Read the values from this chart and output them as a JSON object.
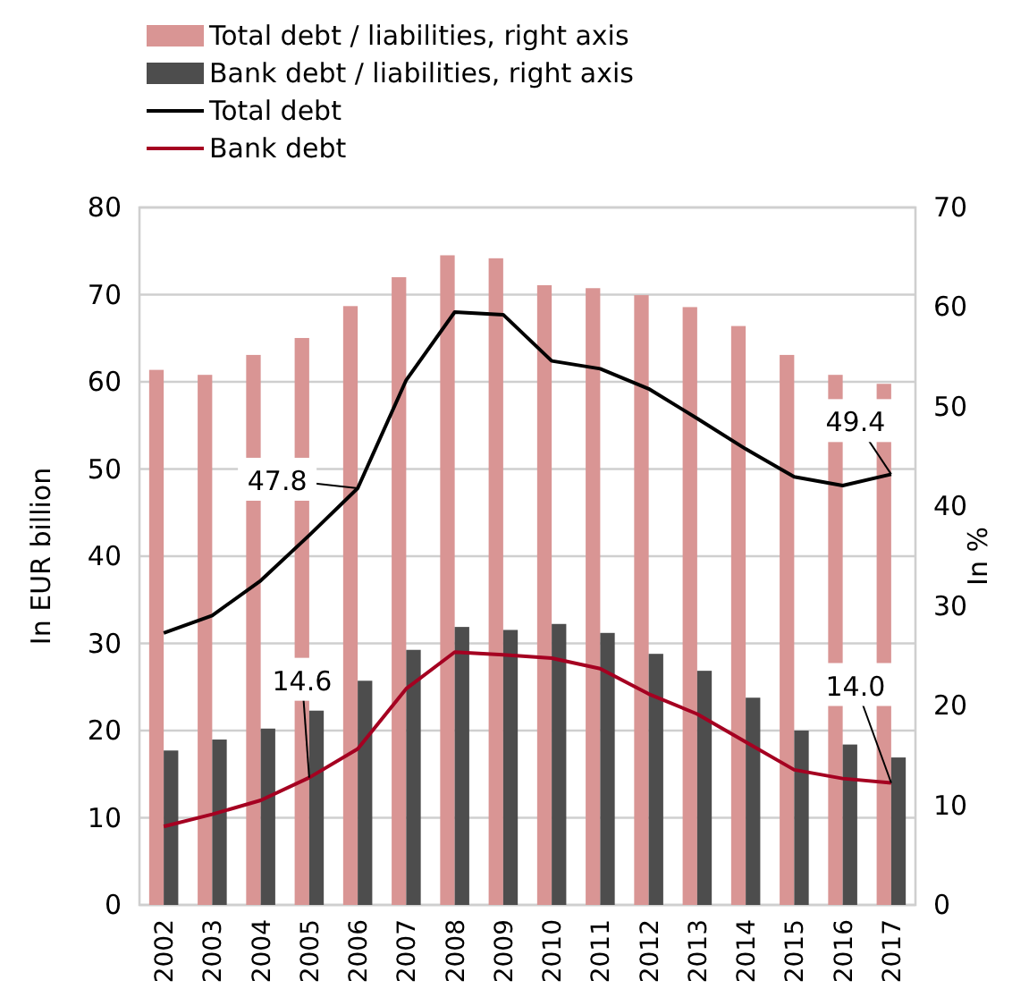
{
  "chart_data": {
    "type": "bar",
    "ylabel": "In EUR billion",
    "y2label": "In %",
    "categories": [
      "2002",
      "2003",
      "2004",
      "2005",
      "2006",
      "2007",
      "2008",
      "2009",
      "2010",
      "2011",
      "2012",
      "2013",
      "2014",
      "2015",
      "2016",
      "2017"
    ],
    "series": [
      {
        "name": "Total debt / liabilities, right axis",
        "axis": "y2",
        "color": "#d99594",
        "values": [
          53.7,
          53.2,
          55.2,
          56.9,
          60.1,
          63.0,
          65.2,
          64.9,
          62.2,
          61.9,
          61.2,
          60.0,
          58.1,
          55.2,
          53.2,
          52.3
        ]
      },
      {
        "name": "Bank debt / liabilities, right axis",
        "axis": "y2",
        "color": "#4d4d4d",
        "values": [
          15.5,
          16.6,
          17.7,
          19.5,
          22.5,
          25.6,
          27.9,
          27.6,
          28.2,
          27.3,
          25.2,
          23.5,
          20.8,
          17.5,
          16.1,
          14.8
        ]
      },
      {
        "name": "Total debt",
        "type": "line",
        "color": "#000000",
        "values": [
          31.2,
          33.2,
          37.2,
          42.4,
          47.8,
          60.2,
          68.0,
          67.7,
          62.4,
          61.5,
          59.2,
          55.8,
          52.3,
          49.1,
          48.1,
          49.4
        ],
        "value_labels": [
          null,
          null,
          null,
          null,
          "47.8",
          null,
          null,
          null,
          null,
          null,
          null,
          null,
          null,
          null,
          null,
          "49.4"
        ]
      },
      {
        "name": "Bank debt",
        "type": "line",
        "color": "#a50021",
        "values": [
          9.0,
          10.4,
          12.0,
          14.6,
          17.9,
          24.8,
          29.0,
          28.7,
          28.3,
          27.1,
          24.2,
          21.9,
          18.7,
          15.5,
          14.5,
          14.0
        ],
        "value_labels": [
          null,
          null,
          null,
          "14.6",
          null,
          null,
          null,
          null,
          null,
          null,
          null,
          null,
          null,
          null,
          null,
          "14.0"
        ]
      }
    ],
    "ylim": [
      0,
      80
    ],
    "yticks": [
      0,
      10,
      20,
      30,
      40,
      50,
      60,
      70,
      80
    ],
    "y2lim": [
      0,
      70
    ],
    "y2ticks": [
      0,
      10,
      20,
      30,
      40,
      50,
      60,
      70
    ],
    "grid": "y",
    "legend": "top left"
  }
}
